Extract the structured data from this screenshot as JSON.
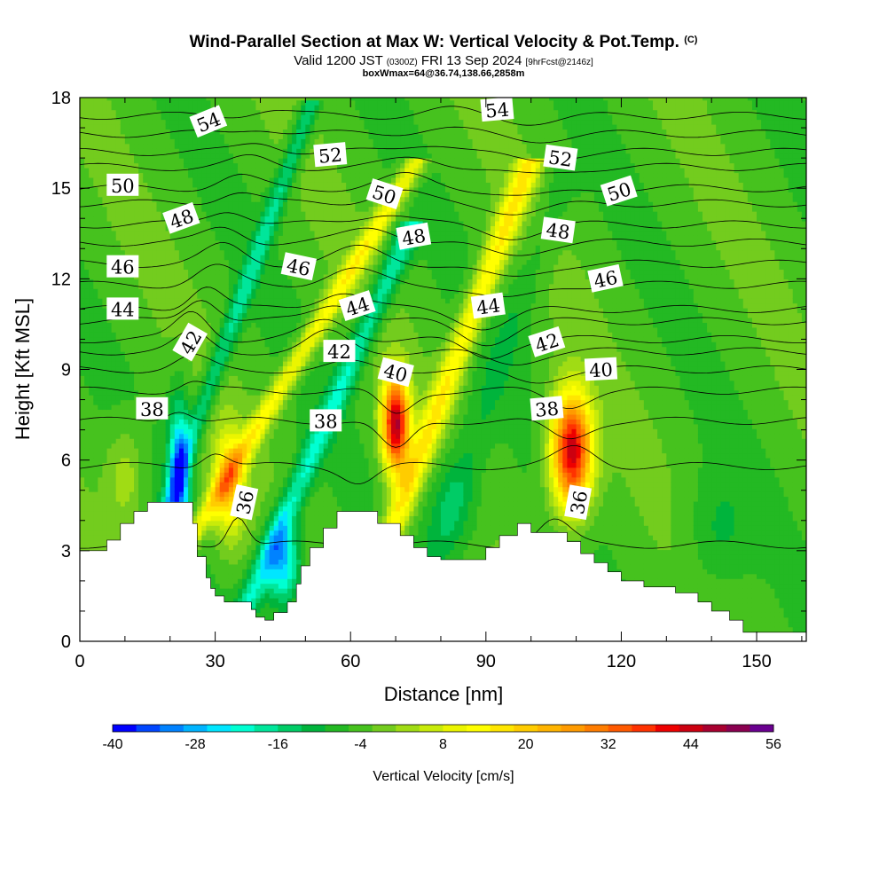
{
  "chart_data": {
    "type": "heatmap",
    "title": "Wind-Parallel Section at Max W: Vertical Velocity & Pot.Temp.",
    "title_suffix": "(C)",
    "subtitle_main_a": "Valid 1200 JST",
    "subtitle_zulu": "(0300Z)",
    "subtitle_main_b": "FRI 13 Sep 2024",
    "subtitle_fcst": "[9hrFcst@2146z]",
    "subtitle2": "boxWmax=64@36.74,138.66,2858m",
    "xlabel": "Distance [nm]",
    "ylabel": "Height [Kft MSL]",
    "xlim": [
      0,
      161
    ],
    "ylim": [
      0,
      18
    ],
    "x_ticks": [
      "0",
      "30",
      "60",
      "90",
      "120",
      "150"
    ],
    "x_tick_values": [
      0,
      30,
      60,
      90,
      120,
      150
    ],
    "y_ticks": [
      "0",
      "3",
      "6",
      "9",
      "12",
      "15",
      "18"
    ],
    "y_tick_values": [
      0,
      3,
      6,
      9,
      12,
      15,
      18
    ],
    "colorbar": {
      "label": "Vertical Velocity [cm/s]",
      "tick_labels": [
        "-40",
        "-28",
        "-16",
        "-4",
        "8",
        "20",
        "32",
        "44",
        "56"
      ],
      "tick_values": [
        -40,
        -28,
        -16,
        -4,
        8,
        20,
        32,
        44,
        56
      ],
      "min": -40,
      "max": 56,
      "step": 4,
      "colors": [
        "#0000ff",
        "#0046ff",
        "#0082ff",
        "#00b4ff",
        "#00e6ff",
        "#00ffd2",
        "#00e69b",
        "#00cc66",
        "#00b43c",
        "#23b923",
        "#46c21e",
        "#73cc1e",
        "#a0dc14",
        "#c8eb0a",
        "#ebf500",
        "#ffff00",
        "#ffe600",
        "#ffcc00",
        "#ffb400",
        "#ff9b00",
        "#ff7d00",
        "#ff5a00",
        "#ff3200",
        "#ee0000",
        "#cc0010",
        "#a80030",
        "#8a0050",
        "#6a0090"
      ]
    },
    "terrain_kft": [
      [
        0,
        3
      ],
      [
        6,
        3
      ],
      [
        6,
        3.35
      ],
      [
        9,
        3.35
      ],
      [
        9,
        3.9
      ],
      [
        12,
        3.9
      ],
      [
        12,
        4.3
      ],
      [
        15,
        4.3
      ],
      [
        15,
        4.6
      ],
      [
        25,
        4.6
      ],
      [
        25,
        3.9
      ],
      [
        26,
        3.9
      ],
      [
        26,
        2.8
      ],
      [
        28,
        2.8
      ],
      [
        28,
        2.1
      ],
      [
        29,
        2.1
      ],
      [
        29,
        1.75
      ],
      [
        30,
        1.75
      ],
      [
        30,
        1.5
      ],
      [
        32,
        1.5
      ],
      [
        32,
        1.3
      ],
      [
        38,
        1.3
      ],
      [
        38,
        1.05
      ],
      [
        39,
        1.05
      ],
      [
        39,
        0.8
      ],
      [
        41,
        0.8
      ],
      [
        41,
        0.7
      ],
      [
        43,
        0.7
      ],
      [
        43,
        0.95
      ],
      [
        46,
        0.95
      ],
      [
        46,
        1.3
      ],
      [
        48,
        1.3
      ],
      [
        48,
        1.9
      ],
      [
        49,
        1.9
      ],
      [
        49,
        2.5
      ],
      [
        51,
        2.5
      ],
      [
        51,
        3.1
      ],
      [
        54,
        3.1
      ],
      [
        54,
        3.75
      ],
      [
        57,
        3.75
      ],
      [
        57,
        4.3
      ],
      [
        66,
        4.3
      ],
      [
        66,
        3.9
      ],
      [
        71,
        3.9
      ],
      [
        71,
        3.5
      ],
      [
        74,
        3.5
      ],
      [
        74,
        3.1
      ],
      [
        77,
        3.1
      ],
      [
        77,
        2.8
      ],
      [
        80,
        2.8
      ],
      [
        80,
        2.7
      ],
      [
        90,
        2.7
      ],
      [
        90,
        3.1
      ],
      [
        93,
        3.1
      ],
      [
        93,
        3.5
      ],
      [
        97,
        3.5
      ],
      [
        97,
        3.9
      ],
      [
        100,
        3.9
      ],
      [
        100,
        3.6
      ],
      [
        108,
        3.6
      ],
      [
        108,
        3.3
      ],
      [
        111,
        3.3
      ],
      [
        111,
        2.9
      ],
      [
        114,
        2.9
      ],
      [
        114,
        2.6
      ],
      [
        117,
        2.6
      ],
      [
        117,
        2.3
      ],
      [
        120,
        2.3
      ],
      [
        120,
        2.0
      ],
      [
        125,
        2.0
      ],
      [
        125,
        1.8
      ],
      [
        132,
        1.8
      ],
      [
        132,
        1.6
      ],
      [
        137,
        1.6
      ],
      [
        137,
        1.3
      ],
      [
        140,
        1.3
      ],
      [
        140,
        1.0
      ],
      [
        144,
        1.0
      ],
      [
        144,
        0.7
      ],
      [
        147,
        0.7
      ],
      [
        147,
        0.3
      ],
      [
        161,
        0.3
      ]
    ],
    "w_features": [
      {
        "x": 70,
        "z": 7.2,
        "amp": 58,
        "sx": 3.0,
        "sz": 1.6
      },
      {
        "x": 109,
        "z": 6.3,
        "amp": 58,
        "sx": 4.5,
        "sz": 1.9
      },
      {
        "x": 33,
        "z": 5.2,
        "amp": 26,
        "sx": 3.5,
        "sz": 1.8
      },
      {
        "x": 22,
        "z": 5.5,
        "amp": -32,
        "sx": 2.3,
        "sz": 2.4
      },
      {
        "x": 45,
        "z": 2.6,
        "amp": -28,
        "sx": 4.0,
        "sz": 1.4
      },
      {
        "x": 10,
        "z": 5.5,
        "amp": 10,
        "sx": 4.0,
        "sz": 1.6
      },
      {
        "x": 83,
        "z": 4.5,
        "amp": -10,
        "sx": 6.0,
        "sz": 1.8
      },
      {
        "x": 141,
        "z": 3.5,
        "amp": -7,
        "sx": 7.0,
        "sz": 2.0
      }
    ],
    "w_bands": [
      {
        "x0": 31,
        "z0": 5,
        "slope": -4.0,
        "amp": 20,
        "width": 2.6,
        "top": 16
      },
      {
        "x0": 48,
        "z0": 5,
        "slope": -2.9,
        "amp": -18,
        "width": 2.8,
        "top": 14
      },
      {
        "x0": 75,
        "z0": 6,
        "slope": -2.5,
        "amp": 22,
        "width": 3.0,
        "top": 16
      },
      {
        "x0": 23,
        "z0": 6,
        "slope": -2.4,
        "amp": -15,
        "width": 2.2,
        "top": 18
      },
      {
        "x0": 88,
        "z0": 7,
        "slope": -2.3,
        "amp": -5,
        "width": 4.0,
        "top": 16
      }
    ],
    "theta_contours": [
      {
        "level": 36,
        "z0": 3.2,
        "amp": [
          [
            35,
            1.0,
            3.0
          ],
          [
            62,
            0.6,
            4.0
          ],
          [
            105,
            0.8,
            5.0
          ]
        ]
      },
      {
        "level": 37,
        "z0": 5.8,
        "amp": [
          [
            30,
            0.5,
            4.0
          ],
          [
            62,
            -0.5,
            5.0
          ],
          [
            110,
            0.6,
            6.0
          ]
        ]
      },
      {
        "level": 38,
        "z0": 7.3,
        "amp": [
          [
            22,
            0.4,
            4.0
          ],
          [
            70,
            -1.0,
            5.0
          ],
          [
            108,
            -0.6,
            6.0
          ]
        ]
      },
      {
        "level": 39,
        "z0": 8.3,
        "amp": [
          [
            25,
            0.3,
            4.0
          ],
          [
            70,
            -0.8,
            5.0
          ],
          [
            108,
            -0.5,
            6.0
          ]
        ]
      },
      {
        "level": 40,
        "z0": 9.0,
        "amp": [
          [
            25,
            0.4,
            5.0
          ],
          [
            60,
            0.2,
            6.0
          ],
          [
            100,
            -0.4,
            8.0
          ]
        ]
      },
      {
        "level": 41,
        "z0": 9.6,
        "amp": [
          [
            25,
            0.6,
            5.0
          ],
          [
            55,
            0.6,
            6.0
          ],
          [
            95,
            -0.4,
            8.0
          ]
        ]
      },
      {
        "level": 42,
        "z0": 10.0,
        "amp": [
          [
            25,
            0.9,
            5.0
          ],
          [
            55,
            0.6,
            7.0
          ],
          [
            90,
            -0.6,
            7.0
          ]
        ]
      },
      {
        "level": 43,
        "z0": 10.6,
        "amp": [
          [
            27,
            0.8,
            5.0
          ],
          [
            57,
            0.6,
            7.0
          ],
          [
            90,
            -0.7,
            8.0
          ]
        ]
      },
      {
        "level": 44,
        "z0": 11.0,
        "amp": [
          [
            28,
            0.8,
            5.0
          ],
          [
            58,
            0.6,
            7.0
          ],
          [
            90,
            -0.6,
            8.0
          ]
        ]
      },
      {
        "level": 45,
        "z0": 11.8,
        "amp": [
          [
            30,
            0.6,
            6.0
          ],
          [
            60,
            0.5,
            8.0
          ],
          [
            95,
            -0.5,
            9.0
          ]
        ]
      },
      {
        "level": 46,
        "z0": 12.5,
        "amp": [
          [
            32,
            0.6,
            6.0
          ],
          [
            62,
            0.5,
            8.0
          ],
          [
            95,
            -0.5,
            9.0
          ]
        ]
      },
      {
        "level": 47,
        "z0": 13.2,
        "amp": [
          [
            32,
            0.5,
            6.0
          ],
          [
            65,
            0.5,
            8.0
          ],
          [
            95,
            -0.4,
            9.0
          ]
        ]
      },
      {
        "level": 48,
        "z0": 13.8,
        "amp": [
          [
            33,
            0.5,
            6.0
          ],
          [
            68,
            0.4,
            8.0
          ],
          [
            95,
            -0.4,
            9.0
          ]
        ]
      },
      {
        "level": 49,
        "z0": 14.5,
        "amp": [
          [
            35,
            0.4,
            6.0
          ],
          [
            70,
            0.4,
            8.0
          ],
          [
            98,
            -0.3,
            9.0
          ]
        ]
      },
      {
        "level": 50,
        "z0": 15.0,
        "amp": [
          [
            35,
            0.4,
            6.0
          ],
          [
            72,
            0.4,
            8.0
          ],
          [
            100,
            -0.3,
            9.0
          ]
        ]
      },
      {
        "level": 51,
        "z0": 15.7,
        "amp": [
          [
            38,
            0.3,
            6.0
          ],
          [
            75,
            0.3,
            8.0
          ],
          [
            100,
            -0.3,
            9.0
          ]
        ]
      },
      {
        "level": 52,
        "z0": 16.2,
        "amp": [
          [
            40,
            0.3,
            6.0
          ],
          [
            78,
            0.3,
            8.0
          ],
          [
            100,
            -0.3,
            9.0
          ]
        ]
      },
      {
        "level": 53,
        "z0": 16.8,
        "amp": [
          [
            40,
            0.2,
            6.0
          ],
          [
            80,
            0.2,
            8.0
          ],
          [
            100,
            -0.2,
            9.0
          ]
        ]
      },
      {
        "level": 54,
        "z0": 17.4,
        "amp": [
          [
            42,
            0.2,
            6.0
          ],
          [
            82,
            0.2,
            8.0
          ],
          [
            100,
            -0.2,
            9.0
          ]
        ]
      }
    ],
    "contour_labels": [
      {
        "text": "54",
        "x": 28.5,
        "z": 17.2,
        "rot": -22
      },
      {
        "text": "54",
        "x": 92.5,
        "z": 17.6,
        "rot": -5
      },
      {
        "text": "52",
        "x": 55.5,
        "z": 16.1,
        "rot": -5
      },
      {
        "text": "52",
        "x": 106.5,
        "z": 16.0,
        "rot": 8
      },
      {
        "text": "50",
        "x": 9.5,
        "z": 15.1,
        "rot": 0
      },
      {
        "text": "50",
        "x": 67.5,
        "z": 14.8,
        "rot": 18
      },
      {
        "text": "50",
        "x": 119.5,
        "z": 14.9,
        "rot": -18
      },
      {
        "text": "48",
        "x": 22.5,
        "z": 14.0,
        "rot": -20
      },
      {
        "text": "48",
        "x": 74.0,
        "z": 13.4,
        "rot": -10
      },
      {
        "text": "48",
        "x": 106.0,
        "z": 13.6,
        "rot": 8
      },
      {
        "text": "46",
        "x": 9.5,
        "z": 12.4,
        "rot": 0
      },
      {
        "text": "46",
        "x": 48.5,
        "z": 12.4,
        "rot": 12
      },
      {
        "text": "46",
        "x": 116.5,
        "z": 12.0,
        "rot": -12
      },
      {
        "text": "44",
        "x": 9.5,
        "z": 11.0,
        "rot": 0
      },
      {
        "text": "44",
        "x": 61.5,
        "z": 11.1,
        "rot": -18
      },
      {
        "text": "44",
        "x": 90.5,
        "z": 11.1,
        "rot": -8
      },
      {
        "text": "42",
        "x": 24.5,
        "z": 9.9,
        "rot": -60
      },
      {
        "text": "42",
        "x": 57.5,
        "z": 9.6,
        "rot": 0
      },
      {
        "text": "42",
        "x": 103.5,
        "z": 9.9,
        "rot": -18
      },
      {
        "text": "40",
        "x": 70.0,
        "z": 8.9,
        "rot": 15
      },
      {
        "text": "40",
        "x": 115.5,
        "z": 9.0,
        "rot": -3
      },
      {
        "text": "38",
        "x": 16.0,
        "z": 7.7,
        "rot": 0
      },
      {
        "text": "38",
        "x": 54.5,
        "z": 7.3,
        "rot": 0
      },
      {
        "text": "38",
        "x": 103.5,
        "z": 7.7,
        "rot": -5
      },
      {
        "text": "36",
        "x": 36.5,
        "z": 4.6,
        "rot": -78
      },
      {
        "text": "36",
        "x": 110.5,
        "z": 4.6,
        "rot": -80
      }
    ]
  }
}
